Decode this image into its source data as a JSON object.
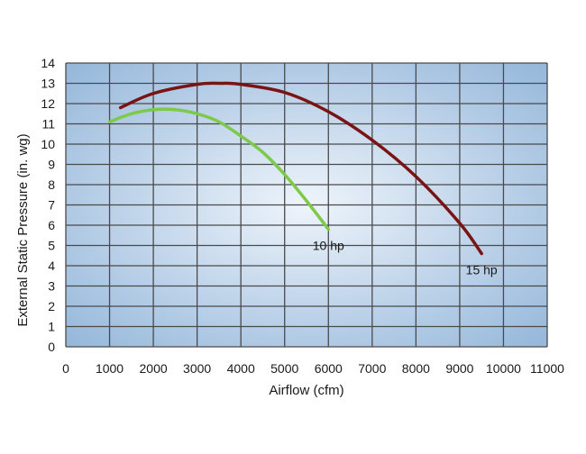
{
  "chart_data": {
    "type": "line",
    "xlabel": "Airflow (cfm)",
    "ylabel": "External Static Pressure (in. wg)",
    "xlim": [
      0,
      11000
    ],
    "ylim": [
      0,
      14
    ],
    "x_ticks": [
      0,
      1000,
      2000,
      3000,
      4000,
      5000,
      6000,
      7000,
      8000,
      9000,
      10000,
      11000
    ],
    "y_ticks": [
      0,
      1,
      2,
      3,
      4,
      5,
      6,
      7,
      8,
      9,
      10,
      11,
      12,
      13,
      14
    ],
    "grid": true,
    "background": "blue radial gradient",
    "colors": {
      "grid": "#4a4a4a",
      "plot_light": "#eef4fb",
      "plot_dark": "#8fb3d8"
    },
    "series": [
      {
        "name": "15 hp",
        "color": "#7a1414",
        "x": [
          1250,
          2000,
          3000,
          3500,
          4000,
          5000,
          6000,
          7000,
          8000,
          9000,
          9500
        ],
        "y": [
          11.8,
          12.5,
          12.95,
          13.0,
          12.95,
          12.55,
          11.6,
          10.2,
          8.4,
          6.1,
          4.6
        ]
      },
      {
        "name": "10 hp",
        "color": "#7dc94a",
        "x": [
          1000,
          1500,
          2000,
          2500,
          3000,
          3500,
          4000,
          4500,
          5000,
          5500,
          6000
        ],
        "y": [
          11.1,
          11.5,
          11.7,
          11.7,
          11.5,
          11.1,
          10.4,
          9.6,
          8.5,
          7.2,
          5.8
        ]
      }
    ]
  }
}
